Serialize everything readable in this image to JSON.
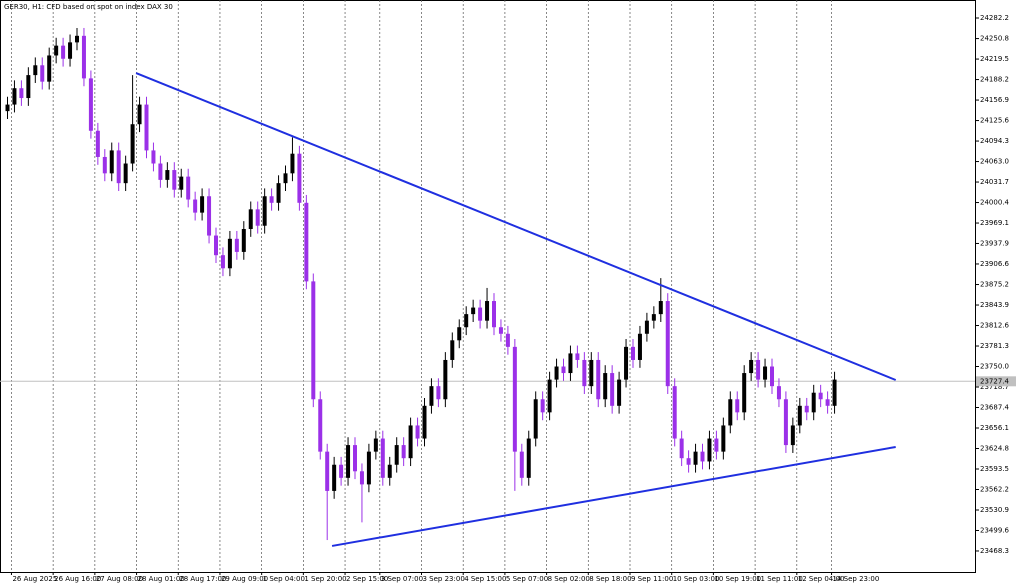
{
  "chart_data": {
    "type": "candlestick",
    "title": "GER30, H1:  CFD based on spot on index DAX 30",
    "colors": {
      "up": "#000000",
      "down": "#9b30e8",
      "trendline": "#1f2fe0",
      "price_line": "#c0c0c0"
    },
    "grid": true,
    "ylim": [
      23436.2,
      24309.7
    ],
    "yticks": [
      {
        "value": 24282.2,
        "label": "24282.2"
      },
      {
        "value": 24250.8,
        "label": "24250.8"
      },
      {
        "value": 24219.5,
        "label": "24219.5"
      },
      {
        "value": 24188.2,
        "label": "24188.2"
      },
      {
        "value": 24156.9,
        "label": "24156.9"
      },
      {
        "value": 24125.6,
        "label": "24125.6"
      },
      {
        "value": 24094.3,
        "label": "24094.3"
      },
      {
        "value": 24063,
        "label": "24063.0"
      },
      {
        "value": 24031.7,
        "label": "24031.7"
      },
      {
        "value": 24000.4,
        "label": "24000.4"
      },
      {
        "value": 23969.1,
        "label": "23969.1"
      },
      {
        "value": 23937.9,
        "label": "23937.9"
      },
      {
        "value": 23906.6,
        "label": "23906.6"
      },
      {
        "value": 23875.2,
        "label": "23875.2"
      },
      {
        "value": 23843.9,
        "label": "23843.9"
      },
      {
        "value": 23812.6,
        "label": "23812.6"
      },
      {
        "value": 23781.3,
        "label": "23781.3"
      },
      {
        "value": 23750,
        "label": "23750.0"
      },
      {
        "value": 23718.7,
        "label": "23718.7"
      },
      {
        "value": 23687.4,
        "label": "23687.4"
      },
      {
        "value": 23656.1,
        "label": "23656.1"
      },
      {
        "value": 23624.8,
        "label": "23624.8"
      },
      {
        "value": 23593.5,
        "label": "23593.5"
      },
      {
        "value": 23562.2,
        "label": "23562.2"
      },
      {
        "value": 23530.9,
        "label": "23530.9"
      },
      {
        "value": 23499.6,
        "label": "23499.6"
      },
      {
        "value": 23468.3,
        "label": "23468.3"
      }
    ],
    "current_price": {
      "value": 23727.4,
      "label": "23727.4"
    },
    "categories": [
      null,
      "26 Aug 2025",
      null,
      null,
      null,
      null,
      null,
      "26 Aug 16:00",
      null,
      null,
      null,
      null,
      null,
      "27 Aug 08:00",
      null,
      null,
      null,
      null,
      null,
      "28 Aug 01:00",
      null,
      null,
      null,
      null,
      null,
      "28 Aug 17:00",
      null,
      null,
      null,
      null,
      null,
      "29 Aug 09:00",
      null,
      null,
      null,
      null,
      null,
      "1 Sep 04:00",
      null,
      null,
      null,
      null,
      null,
      "1 Sep 20:00",
      null,
      null,
      null,
      null,
      null,
      "2 Sep 15:00",
      null,
      null,
      null,
      null,
      "3 Sep 07:00",
      null,
      null,
      null,
      null,
      null,
      "3 Sep 23:00",
      null,
      null,
      null,
      null,
      null,
      "4 Sep 15:00",
      null,
      null,
      null,
      null,
      null,
      "5 Sep 07:00",
      null,
      null,
      null,
      null,
      null,
      "8 Sep 02:00",
      null,
      null,
      null,
      null,
      null,
      "8 Sep 18:00",
      null,
      null,
      null,
      null,
      null,
      "9 Sep 11:00",
      null,
      null,
      null,
      null,
      null,
      "10 Sep 03:00",
      null,
      null,
      null,
      null,
      null,
      "10 Sep 19:00",
      null,
      null,
      null,
      null,
      null,
      "11 Sep 11:00",
      null,
      null,
      null,
      null,
      null,
      "12 Sep 04:00",
      null,
      null,
      null,
      null,
      "14 Sep 23:00"
    ],
    "open": [
      24140,
      24150,
      24175,
      24160,
      24195,
      24210,
      24185,
      24225,
      24240,
      24220,
      24245,
      24255,
      24190,
      24110,
      24070,
      24045,
      24080,
      24030,
      24060,
      24120,
      24150,
      24080,
      24060,
      24035,
      24050,
      24020,
      24040,
      24005,
      23985,
      24010,
      23950,
      23920,
      23900,
      23945,
      23925,
      23960,
      23990,
      23965,
      24010,
      24000,
      24030,
      24045,
      24075,
      24000,
      23880,
      23700,
      23620,
      23560,
      23600,
      23580,
      23630,
      23590,
      23570,
      23620,
      23640,
      23580,
      23600,
      23630,
      23610,
      23660,
      23640,
      23690,
      23720,
      23700,
      23760,
      23790,
      23810,
      23830,
      23840,
      23820,
      23850,
      23810,
      23800,
      23780,
      23620,
      23580,
      23640,
      23700,
      23680,
      23730,
      23750,
      23740,
      23770,
      23760,
      23720,
      23760,
      23700,
      23740,
      23690,
      23730,
      23780,
      23760,
      23800,
      23820,
      23830,
      23850,
      23720,
      23640,
      23610,
      23600,
      23620,
      23605,
      23640,
      23620,
      23660,
      23700,
      23680,
      23740,
      23760,
      23730,
      23750,
      23720,
      23700,
      23630,
      23660,
      23690,
      23680,
      23710,
      23700,
      23690
    ],
    "high": [
      24162,
      24187,
      24187,
      24207,
      24222,
      24222,
      24237,
      24252,
      24252,
      24257,
      24267,
      24267,
      24202,
      24122,
      24082,
      24092,
      24092,
      24072,
      24195,
      24162,
      24162,
      24092,
      24072,
      24062,
      24062,
      24052,
      24052,
      24017,
      24022,
      24022,
      23962,
      23932,
      23957,
      23957,
      23972,
      24002,
      24002,
      24022,
      24022,
      24042,
      24057,
      24100,
      24087,
      24012,
      23892,
      23712,
      23632,
      23612,
      23612,
      23642,
      23642,
      23602,
      23632,
      23652,
      23652,
      23612,
      23642,
      23642,
      23672,
      23672,
      23702,
      23732,
      23732,
      23772,
      23802,
      23822,
      23842,
      23852,
      23852,
      23870,
      23862,
      23822,
      23812,
      23792,
      23632,
      23652,
      23712,
      23712,
      23742,
      23762,
      23762,
      23782,
      23782,
      23772,
      23772,
      23772,
      23752,
      23752,
      23742,
      23792,
      23792,
      23812,
      23832,
      23842,
      23885,
      23862,
      23732,
      23652,
      23622,
      23632,
      23632,
      23652,
      23652,
      23672,
      23712,
      23712,
      23752,
      23772,
      23772,
      23762,
      23762,
      23732,
      23712,
      23672,
      23702,
      23702,
      23722,
      23722,
      23712,
      23742
    ],
    "low": [
      24128,
      24138,
      24148,
      24148,
      24183,
      24173,
      24173,
      24213,
      24208,
      24208,
      24233,
      24178,
      24098,
      24058,
      24033,
      24033,
      24018,
      24018,
      24048,
      24108,
      24068,
      24048,
      24023,
      24023,
      24008,
      24008,
      23993,
      23973,
      23973,
      23938,
      23908,
      23888,
      23888,
      23913,
      23913,
      23948,
      23953,
      23953,
      23988,
      23988,
      24018,
      24033,
      23988,
      23868,
      23688,
      23608,
      23485,
      23548,
      23568,
      23568,
      23578,
      23512,
      23558,
      23608,
      23568,
      23568,
      23588,
      23598,
      23598,
      23628,
      23628,
      23678,
      23688,
      23688,
      23748,
      23778,
      23798,
      23818,
      23808,
      23808,
      23798,
      23788,
      23768,
      23560,
      23568,
      23568,
      23628,
      23668,
      23668,
      23718,
      23728,
      23728,
      23748,
      23708,
      23708,
      23688,
      23688,
      23678,
      23678,
      23718,
      23748,
      23748,
      23788,
      23808,
      23818,
      23708,
      23628,
      23598,
      23588,
      23588,
      23593,
      23593,
      23608,
      23608,
      23648,
      23668,
      23668,
      23728,
      23718,
      23718,
      23708,
      23688,
      23618,
      23618,
      23648,
      23668,
      23668,
      23688,
      23678,
      23678
    ],
    "close": [
      24150,
      24175,
      24160,
      24195,
      24210,
      24185,
      24225,
      24240,
      24220,
      24245,
      24255,
      24190,
      24110,
      24070,
      24045,
      24080,
      24030,
      24060,
      24120,
      24150,
      24080,
      24060,
      24035,
      24050,
      24020,
      24040,
      24005,
      23985,
      24010,
      23950,
      23920,
      23900,
      23945,
      23925,
      23960,
      23990,
      23965,
      24010,
      24000,
      24030,
      24045,
      24075,
      24000,
      23880,
      23700,
      23620,
      23560,
      23600,
      23580,
      23630,
      23590,
      23570,
      23620,
      23640,
      23580,
      23600,
      23630,
      23610,
      23660,
      23640,
      23690,
      23720,
      23700,
      23760,
      23790,
      23810,
      23830,
      23840,
      23820,
      23850,
      23810,
      23800,
      23780,
      23620,
      23580,
      23640,
      23700,
      23680,
      23730,
      23750,
      23740,
      23770,
      23760,
      23720,
      23760,
      23700,
      23740,
      23690,
      23730,
      23780,
      23760,
      23800,
      23820,
      23830,
      23850,
      23720,
      23640,
      23610,
      23600,
      23620,
      23605,
      23640,
      23620,
      23660,
      23700,
      23680,
      23740,
      23760,
      23730,
      23750,
      23720,
      23700,
      23630,
      23660,
      23690,
      23680,
      23710,
      23700,
      23690,
      23730
    ],
    "trendlines": [
      {
        "x": [
          18.5,
          127.8
        ],
        "values": [
          24198.2,
          23729.4
        ]
      },
      {
        "x": [
          46.7,
          127.8
        ],
        "values": [
          23476.0,
          23627.1
        ]
      }
    ]
  }
}
